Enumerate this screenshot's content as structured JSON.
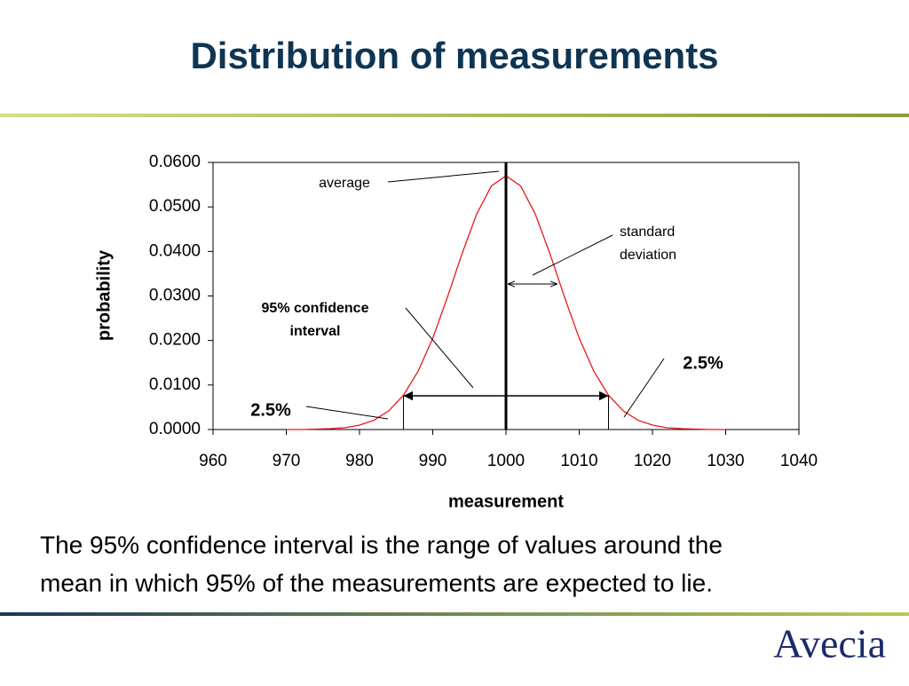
{
  "title": "Distribution of measurements",
  "caption": [
    "The 95% confidence interval is the range of values around the",
    "mean in which 95% of the measurements are expected to lie."
  ],
  "logo": "Avecia",
  "chart_data": {
    "type": "line",
    "x": [
      970,
      972,
      974,
      976,
      978,
      980,
      982,
      984,
      986,
      988,
      990,
      992,
      994,
      996,
      998,
      1000,
      1002,
      1004,
      1006,
      1008,
      1010,
      1012,
      1014,
      1016,
      1018,
      1020,
      1022,
      1024,
      1026,
      1028,
      1030
    ],
    "values": [
      0.0,
      0.0,
      0.0001,
      0.0002,
      0.0004,
      0.001,
      0.0021,
      0.0042,
      0.0077,
      0.0131,
      0.0205,
      0.0297,
      0.0395,
      0.0484,
      0.0547,
      0.057,
      0.0547,
      0.0484,
      0.0395,
      0.0297,
      0.0205,
      0.0131,
      0.0077,
      0.0042,
      0.0021,
      0.001,
      0.0004,
      0.0002,
      0.0001,
      0.0,
      0.0
    ],
    "color": "#e8191c",
    "xlim": [
      960,
      1040
    ],
    "xticks": [
      960,
      970,
      980,
      990,
      1000,
      1010,
      1020,
      1030,
      1040
    ],
    "ylim": [
      0,
      0.06
    ],
    "yticks": [
      {
        "value": 0,
        "label": "0.0000"
      },
      {
        "value": 0.01,
        "label": "0.0100"
      },
      {
        "value": 0.02,
        "label": "0.0200"
      },
      {
        "value": 0.03,
        "label": "0.0300"
      },
      {
        "value": 0.04,
        "label": "0.0400"
      },
      {
        "value": 0.05,
        "label": "0.0500"
      },
      {
        "value": 0.06,
        "label": "0.0600"
      }
    ],
    "xlabel": "measurement",
    "ylabel": "probability",
    "mean": 1000,
    "sd": 7,
    "interval": [
      986,
      1014
    ],
    "annotations": {
      "average": [
        "average"
      ],
      "sd": [
        "standard",
        "deviation"
      ],
      "ci": [
        "95% confidence",
        "interval"
      ],
      "low_tail": [
        "2.5%"
      ],
      "high_tail": [
        "2.5%"
      ]
    }
  }
}
